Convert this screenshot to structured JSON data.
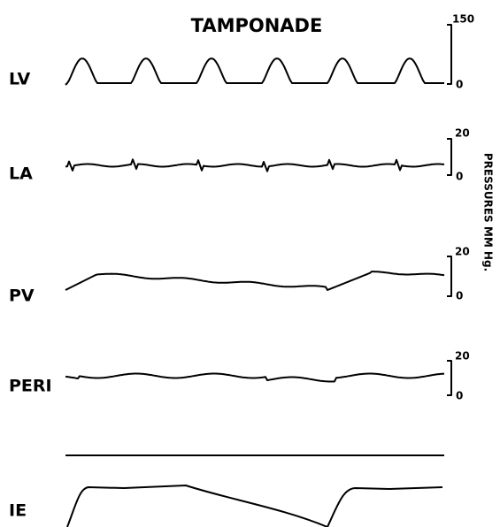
{
  "title": "TAMPONADE",
  "tracks": [
    {
      "label": "LV",
      "scale_top": 150,
      "scale_bottom": 0
    },
    {
      "label": "LA",
      "scale_top": 20,
      "scale_bottom": 0
    },
    {
      "label": "PV",
      "scale_top": 20,
      "scale_bottom": 0
    },
    {
      "label": "PERI",
      "scale_top": 20,
      "scale_bottom": 0
    },
    {
      "label": "IE"
    }
  ],
  "axis_label": "PRESSURES MM Hg."
}
